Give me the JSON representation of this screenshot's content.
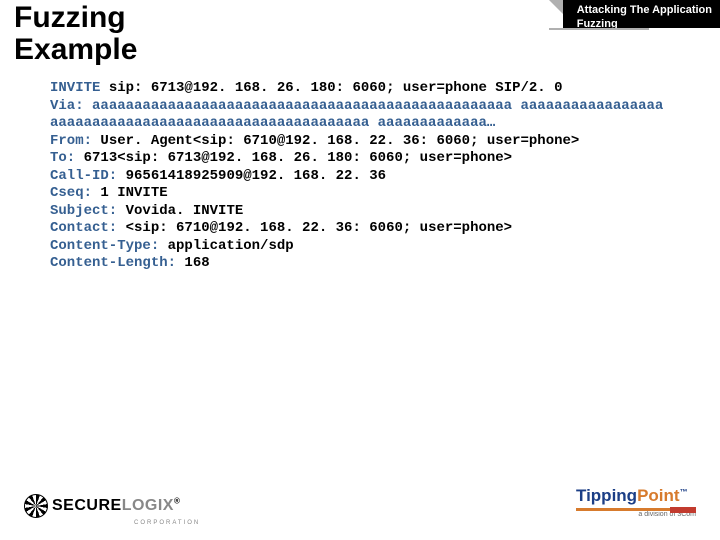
{
  "colors": {
    "background": "#ffffff",
    "text": "#000000",
    "highlight": "#355f91",
    "tab_bg": "#000000",
    "tab_text": "#ffffff",
    "tab_corner": "#b0b0b0",
    "logo_right_blue": "#1b3e86",
    "logo_right_orange": "#d77b2d",
    "logo_right_red": "#c23b2e"
  },
  "typography": {
    "title_fontsize": 30,
    "title_weight": 700,
    "code_fontfamily": "Courier New",
    "code_fontsize": 14,
    "code_weight": 700,
    "header_fontsize": 11
  },
  "title": {
    "line1": "Fuzzing",
    "line2": "Example"
  },
  "header": {
    "line1": "Attacking The Application",
    "line2": "Fuzzing"
  },
  "code": {
    "invite_kw": "INVITE",
    "invite_rest": " sip: 6713@192. 168. 26. 180: 6060; user=phone SIP/2. 0",
    "via_kw": "Via: ",
    "via_payload": "aaaaaaaaaaaaaaaaaaaaaaaaaaaaaaaaaaaaaaaaaaaaaaaaaa aaaaaaaaaaaaaaaaaaaaaaaaaaaaaaaaaaaaaaaaaaaaaaaaaaaaaaa aaaaaaaaaaaaa…",
    "from_kw": "From: ",
    "from_val": "User. Agent<sip: 6710@192. 168. 22. 36: 6060; user=phone>",
    "to_kw": "To: ",
    "to_val": "6713<sip: 6713@192. 168. 26. 180: 6060; user=phone>",
    "callid_kw": "Call-ID: ",
    "callid_val": "96561418925909@192. 168. 22. 36",
    "cseq_kw": "Cseq: ",
    "cseq_val": "1 INVITE",
    "subject_kw": "Subject: ",
    "subject_val": "Vovida. INVITE",
    "contact_kw": "Contact: ",
    "contact_val": "<sip: 6710@192. 168. 22. 36: 6060; user=phone>",
    "ctype_kw": "Content-Type: ",
    "ctype_val": "application/sdp",
    "clen_kw": "Content-Length: ",
    "clen_val": "168"
  },
  "logos": {
    "left_main": "SECURE",
    "left_suffix": "LOGIX",
    "left_reg": "®",
    "left_sub": "CORPORATION",
    "right_part1": "Tipping",
    "right_part2": "Point",
    "right_tm": "™",
    "right_sub": "a division of 3Com"
  }
}
